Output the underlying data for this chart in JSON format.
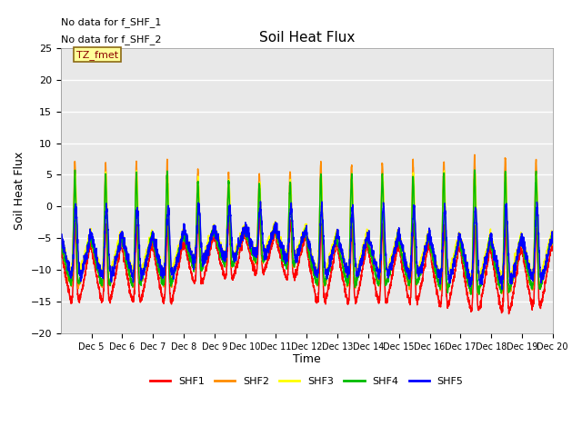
{
  "title": "Soil Heat Flux",
  "ylabel": "Soil Heat Flux",
  "xlabel": "Time",
  "annotations": [
    "No data for f_SHF_1",
    "No data for f_SHF_2"
  ],
  "annotation_box_label": "TZ_fmet",
  "annotation_box_color": "#FFFF99",
  "annotation_box_border": "#8B6914",
  "xlim_days": [
    4,
    20
  ],
  "ylim": [
    -20,
    25
  ],
  "yticks": [
    -20,
    -15,
    -10,
    -5,
    0,
    5,
    10,
    15,
    20,
    25
  ],
  "xtick_labels": [
    "Dec 5",
    "Dec 6",
    "Dec 7",
    "Dec 8",
    "Dec 9",
    "Dec 10",
    "Dec 11",
    "Dec 12",
    "Dec 13",
    "Dec 14",
    "Dec 15",
    "Dec 16",
    "Dec 17",
    "Dec 18",
    "Dec 19",
    "Dec 20"
  ],
  "series": [
    {
      "name": "SHF1",
      "color": "#FF0000"
    },
    {
      "name": "SHF2",
      "color": "#FF8C00"
    },
    {
      "name": "SHF3",
      "color": "#FFFF00"
    },
    {
      "name": "SHF4",
      "color": "#00BB00"
    },
    {
      "name": "SHF5",
      "color": "#0000FF"
    }
  ],
  "background_color": "#E8E8E8",
  "grid_color": "#FFFFFF",
  "fig_background": "#FFFFFF",
  "linewidth": 1.1,
  "n_points": 3000
}
